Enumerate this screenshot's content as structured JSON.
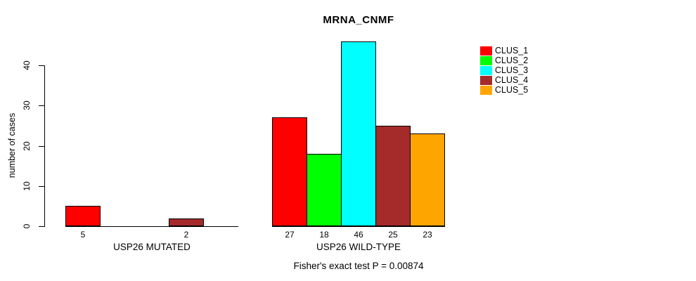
{
  "chart_data": {
    "type": "bar",
    "title": "MRNA_CNMF",
    "ylabel": "number of cases",
    "yticks": [
      0,
      10,
      20,
      30,
      40
    ],
    "ylim": [
      0,
      46
    ],
    "grid": false,
    "legend_position": "right",
    "categories": [
      "CLUS_1",
      "CLUS_2",
      "CLUS_3",
      "CLUS_4",
      "CLUS_5"
    ],
    "colors": [
      "#FF0000",
      "#00FF00",
      "#00FFFF",
      "#A52A2A",
      "#FFA500"
    ],
    "groups": [
      {
        "label": "USP26 MUTATED",
        "values": [
          5,
          0,
          0,
          2,
          0
        ]
      },
      {
        "label": "USP26 WILD-TYPE",
        "values": [
          27,
          18,
          46,
          25,
          23
        ]
      }
    ],
    "annotation": "Fisher's exact test P = 0.00874"
  }
}
